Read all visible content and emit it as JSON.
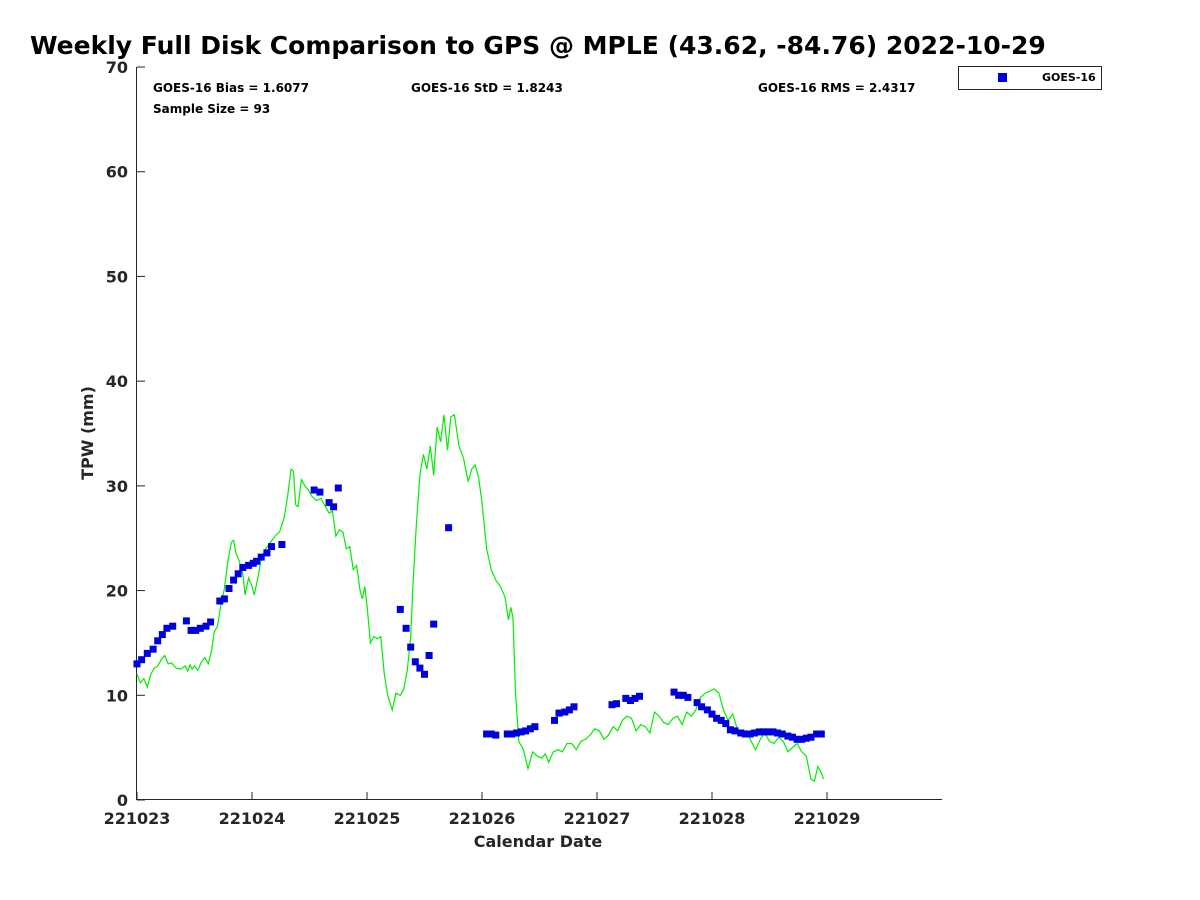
{
  "chart_data": {
    "type": "scatter",
    "title": "Weekly Full Disk Comparison to GPS @ MPLE (43.62, -84.76) 2022-10-29",
    "xlabel": "Calendar Date",
    "ylabel": "TPW (mm)",
    "xlim": [
      221023,
      221030
    ],
    "ylim": [
      0,
      70
    ],
    "x_ticks": [
      "221023",
      "221024",
      "221025",
      "221026",
      "221027",
      "221028",
      "221029"
    ],
    "y_ticks": [
      "0",
      "10",
      "20",
      "30",
      "40",
      "50",
      "60",
      "70"
    ],
    "grid": false,
    "legend": {
      "placement": "top-right-outside",
      "entries": [
        "GOES-16"
      ]
    },
    "stats": {
      "bias": "GOES-16 Bias = 1.6077",
      "std": "GOES-16 StD = 1.8243",
      "rms": "GOES-16 RMS = 2.4317",
      "sample_size": "Sample Size = 93"
    },
    "colors": {
      "goes": "#0000dd",
      "gps": "#00ee00"
    },
    "series": [
      {
        "name": "GOES-16",
        "style": "square-markers",
        "points": [
          [
            0.0,
            13.0
          ],
          [
            0.04,
            13.4
          ],
          [
            0.09,
            14.0
          ],
          [
            0.14,
            14.4
          ],
          [
            0.18,
            15.2
          ],
          [
            0.22,
            15.8
          ],
          [
            0.26,
            16.4
          ],
          [
            0.31,
            16.6
          ],
          [
            0.43,
            17.1
          ],
          [
            0.47,
            16.2
          ],
          [
            0.51,
            16.2
          ],
          [
            0.55,
            16.4
          ],
          [
            0.6,
            16.6
          ],
          [
            0.64,
            17.0
          ],
          [
            0.72,
            19.0
          ],
          [
            0.76,
            19.2
          ],
          [
            0.8,
            20.2
          ],
          [
            0.84,
            21.0
          ],
          [
            0.88,
            21.6
          ],
          [
            0.92,
            22.2
          ],
          [
            0.97,
            22.4
          ],
          [
            1.01,
            22.6
          ],
          [
            1.04,
            22.8
          ],
          [
            1.08,
            23.2
          ],
          [
            1.13,
            23.6
          ],
          [
            1.17,
            24.2
          ],
          [
            1.26,
            24.4
          ],
          [
            1.54,
            29.6
          ],
          [
            1.59,
            29.4
          ],
          [
            1.67,
            28.4
          ],
          [
            1.71,
            28.0
          ],
          [
            1.75,
            29.8
          ],
          [
            2.29,
            18.2
          ],
          [
            2.34,
            16.4
          ],
          [
            2.38,
            14.6
          ],
          [
            2.42,
            13.2
          ],
          [
            2.46,
            12.6
          ],
          [
            2.5,
            12.0
          ],
          [
            2.54,
            13.8
          ],
          [
            2.58,
            16.8
          ],
          [
            2.71,
            26.0
          ],
          [
            3.04,
            6.3
          ],
          [
            3.08,
            6.3
          ],
          [
            3.12,
            6.2
          ],
          [
            3.22,
            6.3
          ],
          [
            3.26,
            6.3
          ],
          [
            3.3,
            6.4
          ],
          [
            3.34,
            6.5
          ],
          [
            3.38,
            6.6
          ],
          [
            3.42,
            6.8
          ],
          [
            3.46,
            7.0
          ],
          [
            3.63,
            7.6
          ],
          [
            3.67,
            8.3
          ],
          [
            3.72,
            8.4
          ],
          [
            3.76,
            8.6
          ],
          [
            3.8,
            8.9
          ],
          [
            4.13,
            9.1
          ],
          [
            4.17,
            9.2
          ],
          [
            4.25,
            9.7
          ],
          [
            4.29,
            9.5
          ],
          [
            4.33,
            9.7
          ],
          [
            4.37,
            9.9
          ],
          [
            4.67,
            10.3
          ],
          [
            4.71,
            10.0
          ],
          [
            4.75,
            10.0
          ],
          [
            4.79,
            9.8
          ],
          [
            4.87,
            9.3
          ],
          [
            4.91,
            8.9
          ],
          [
            4.96,
            8.6
          ],
          [
            5.0,
            8.2
          ],
          [
            5.04,
            7.8
          ],
          [
            5.08,
            7.6
          ],
          [
            5.12,
            7.3
          ],
          [
            5.16,
            6.7
          ],
          [
            5.2,
            6.6
          ],
          [
            5.25,
            6.4
          ],
          [
            5.29,
            6.3
          ],
          [
            5.33,
            6.3
          ],
          [
            5.37,
            6.4
          ],
          [
            5.41,
            6.5
          ],
          [
            5.45,
            6.5
          ],
          [
            5.49,
            6.5
          ],
          [
            5.53,
            6.5
          ],
          [
            5.57,
            6.4
          ],
          [
            5.61,
            6.3
          ],
          [
            5.66,
            6.1
          ],
          [
            5.7,
            6.0
          ],
          [
            5.74,
            5.8
          ],
          [
            5.78,
            5.8
          ],
          [
            5.82,
            5.9
          ],
          [
            5.86,
            6.0
          ],
          [
            5.91,
            6.3
          ],
          [
            5.95,
            6.3
          ]
        ]
      },
      {
        "name": "",
        "style": "line",
        "points": [
          [
            0.0,
            12.0
          ],
          [
            0.03,
            11.2
          ],
          [
            0.06,
            11.6
          ],
          [
            0.09,
            10.8
          ],
          [
            0.12,
            12.0
          ],
          [
            0.15,
            12.6
          ],
          [
            0.18,
            12.8
          ],
          [
            0.21,
            13.4
          ],
          [
            0.24,
            13.8
          ],
          [
            0.27,
            13.0
          ],
          [
            0.3,
            13.1
          ],
          [
            0.34,
            12.6
          ],
          [
            0.38,
            12.5
          ],
          [
            0.42,
            12.8
          ],
          [
            0.44,
            12.3
          ],
          [
            0.46,
            12.9
          ],
          [
            0.48,
            12.5
          ],
          [
            0.5,
            12.8
          ],
          [
            0.53,
            12.4
          ],
          [
            0.56,
            13.2
          ],
          [
            0.59,
            13.6
          ],
          [
            0.62,
            13.0
          ],
          [
            0.65,
            14.4
          ],
          [
            0.67,
            16.0
          ],
          [
            0.7,
            16.6
          ],
          [
            0.73,
            18.6
          ],
          [
            0.76,
            20.2
          ],
          [
            0.79,
            22.8
          ],
          [
            0.82,
            24.6
          ],
          [
            0.84,
            24.8
          ],
          [
            0.86,
            23.6
          ],
          [
            0.89,
            22.8
          ],
          [
            0.92,
            21.6
          ],
          [
            0.94,
            19.6
          ],
          [
            0.97,
            21.2
          ],
          [
            1.0,
            20.4
          ],
          [
            1.02,
            19.6
          ],
          [
            1.05,
            21.2
          ],
          [
            1.08,
            23.0
          ],
          [
            1.12,
            24.0
          ],
          [
            1.16,
            24.6
          ],
          [
            1.2,
            25.2
          ],
          [
            1.24,
            25.6
          ],
          [
            1.28,
            27.0
          ],
          [
            1.31,
            29.0
          ],
          [
            1.34,
            31.6
          ],
          [
            1.36,
            31.4
          ],
          [
            1.38,
            28.2
          ],
          [
            1.4,
            28.0
          ],
          [
            1.43,
            30.6
          ],
          [
            1.46,
            30.0
          ],
          [
            1.49,
            29.6
          ],
          [
            1.52,
            29.0
          ],
          [
            1.56,
            28.6
          ],
          [
            1.6,
            28.8
          ],
          [
            1.64,
            28.0
          ],
          [
            1.67,
            27.4
          ],
          [
            1.7,
            27.6
          ],
          [
            1.73,
            25.2
          ],
          [
            1.76,
            25.8
          ],
          [
            1.79,
            25.6
          ],
          [
            1.82,
            24.0
          ],
          [
            1.85,
            24.2
          ],
          [
            1.88,
            22.0
          ],
          [
            1.91,
            22.4
          ],
          [
            1.94,
            20.0
          ],
          [
            1.96,
            19.2
          ],
          [
            1.98,
            20.4
          ],
          [
            2.0,
            18.6
          ],
          [
            2.03,
            15.0
          ],
          [
            2.06,
            15.6
          ],
          [
            2.09,
            15.4
          ],
          [
            2.12,
            15.6
          ],
          [
            2.15,
            12.0
          ],
          [
            2.18,
            10.0
          ],
          [
            2.22,
            8.6
          ],
          [
            2.25,
            10.2
          ],
          [
            2.29,
            10.0
          ],
          [
            2.32,
            10.6
          ],
          [
            2.35,
            12.4
          ],
          [
            2.38,
            15.6
          ],
          [
            2.4,
            20.6
          ],
          [
            2.43,
            26.4
          ],
          [
            2.46,
            31.0
          ],
          [
            2.49,
            33.0
          ],
          [
            2.52,
            31.6
          ],
          [
            2.55,
            33.8
          ],
          [
            2.58,
            31.0
          ],
          [
            2.61,
            35.6
          ],
          [
            2.64,
            34.2
          ],
          [
            2.67,
            36.8
          ],
          [
            2.7,
            33.4
          ],
          [
            2.73,
            36.6
          ],
          [
            2.76,
            36.8
          ],
          [
            2.8,
            33.8
          ],
          [
            2.84,
            32.6
          ],
          [
            2.88,
            30.4
          ],
          [
            2.91,
            31.6
          ],
          [
            2.94,
            32.0
          ],
          [
            2.97,
            30.8
          ],
          [
            3.0,
            28.4
          ],
          [
            3.04,
            24.0
          ],
          [
            3.08,
            22.0
          ],
          [
            3.12,
            21.0
          ],
          [
            3.16,
            20.4
          ],
          [
            3.2,
            19.4
          ],
          [
            3.23,
            17.2
          ],
          [
            3.25,
            18.4
          ],
          [
            3.27,
            17.4
          ],
          [
            3.29,
            10.4
          ],
          [
            3.32,
            5.6
          ],
          [
            3.36,
            4.8
          ],
          [
            3.4,
            3.0
          ],
          [
            3.44,
            4.6
          ],
          [
            3.48,
            4.2
          ],
          [
            3.52,
            4.0
          ],
          [
            3.55,
            4.4
          ],
          [
            3.58,
            3.6
          ],
          [
            3.62,
            4.6
          ],
          [
            3.66,
            4.8
          ],
          [
            3.7,
            4.6
          ],
          [
            3.74,
            5.4
          ],
          [
            3.78,
            5.4
          ],
          [
            3.82,
            4.8
          ],
          [
            3.86,
            5.6
          ],
          [
            3.9,
            5.8
          ],
          [
            3.94,
            6.2
          ],
          [
            3.98,
            6.8
          ],
          [
            4.02,
            6.6
          ],
          [
            4.06,
            5.8
          ],
          [
            4.1,
            6.2
          ],
          [
            4.14,
            7.0
          ],
          [
            4.18,
            6.6
          ],
          [
            4.22,
            7.6
          ],
          [
            4.26,
            8.0
          ],
          [
            4.3,
            7.8
          ],
          [
            4.34,
            6.6
          ],
          [
            4.38,
            7.2
          ],
          [
            4.42,
            7.0
          ],
          [
            4.46,
            6.4
          ],
          [
            4.5,
            8.4
          ],
          [
            4.54,
            8.0
          ],
          [
            4.58,
            7.4
          ],
          [
            4.62,
            7.2
          ],
          [
            4.66,
            7.8
          ],
          [
            4.7,
            8.0
          ],
          [
            4.74,
            7.2
          ],
          [
            4.78,
            8.4
          ],
          [
            4.82,
            8.0
          ],
          [
            4.86,
            8.6
          ],
          [
            4.9,
            9.8
          ],
          [
            4.94,
            10.2
          ],
          [
            4.98,
            10.4
          ],
          [
            5.02,
            10.6
          ],
          [
            5.06,
            10.2
          ],
          [
            5.1,
            8.6
          ],
          [
            5.14,
            7.6
          ],
          [
            5.18,
            8.2
          ],
          [
            5.22,
            6.8
          ],
          [
            5.26,
            6.2
          ],
          [
            5.3,
            6.6
          ],
          [
            5.34,
            5.6
          ],
          [
            5.38,
            4.8
          ],
          [
            5.42,
            5.8
          ],
          [
            5.46,
            6.4
          ],
          [
            5.5,
            5.6
          ],
          [
            5.54,
            5.4
          ],
          [
            5.58,
            6.0
          ],
          [
            5.62,
            5.6
          ],
          [
            5.66,
            4.6
          ],
          [
            5.7,
            5.0
          ],
          [
            5.74,
            5.4
          ],
          [
            5.78,
            4.6
          ],
          [
            5.82,
            4.2
          ],
          [
            5.86,
            2.0
          ],
          [
            5.89,
            1.8
          ],
          [
            5.92,
            3.2
          ],
          [
            5.95,
            2.6
          ],
          [
            5.97,
            2.0
          ]
        ]
      }
    ]
  }
}
